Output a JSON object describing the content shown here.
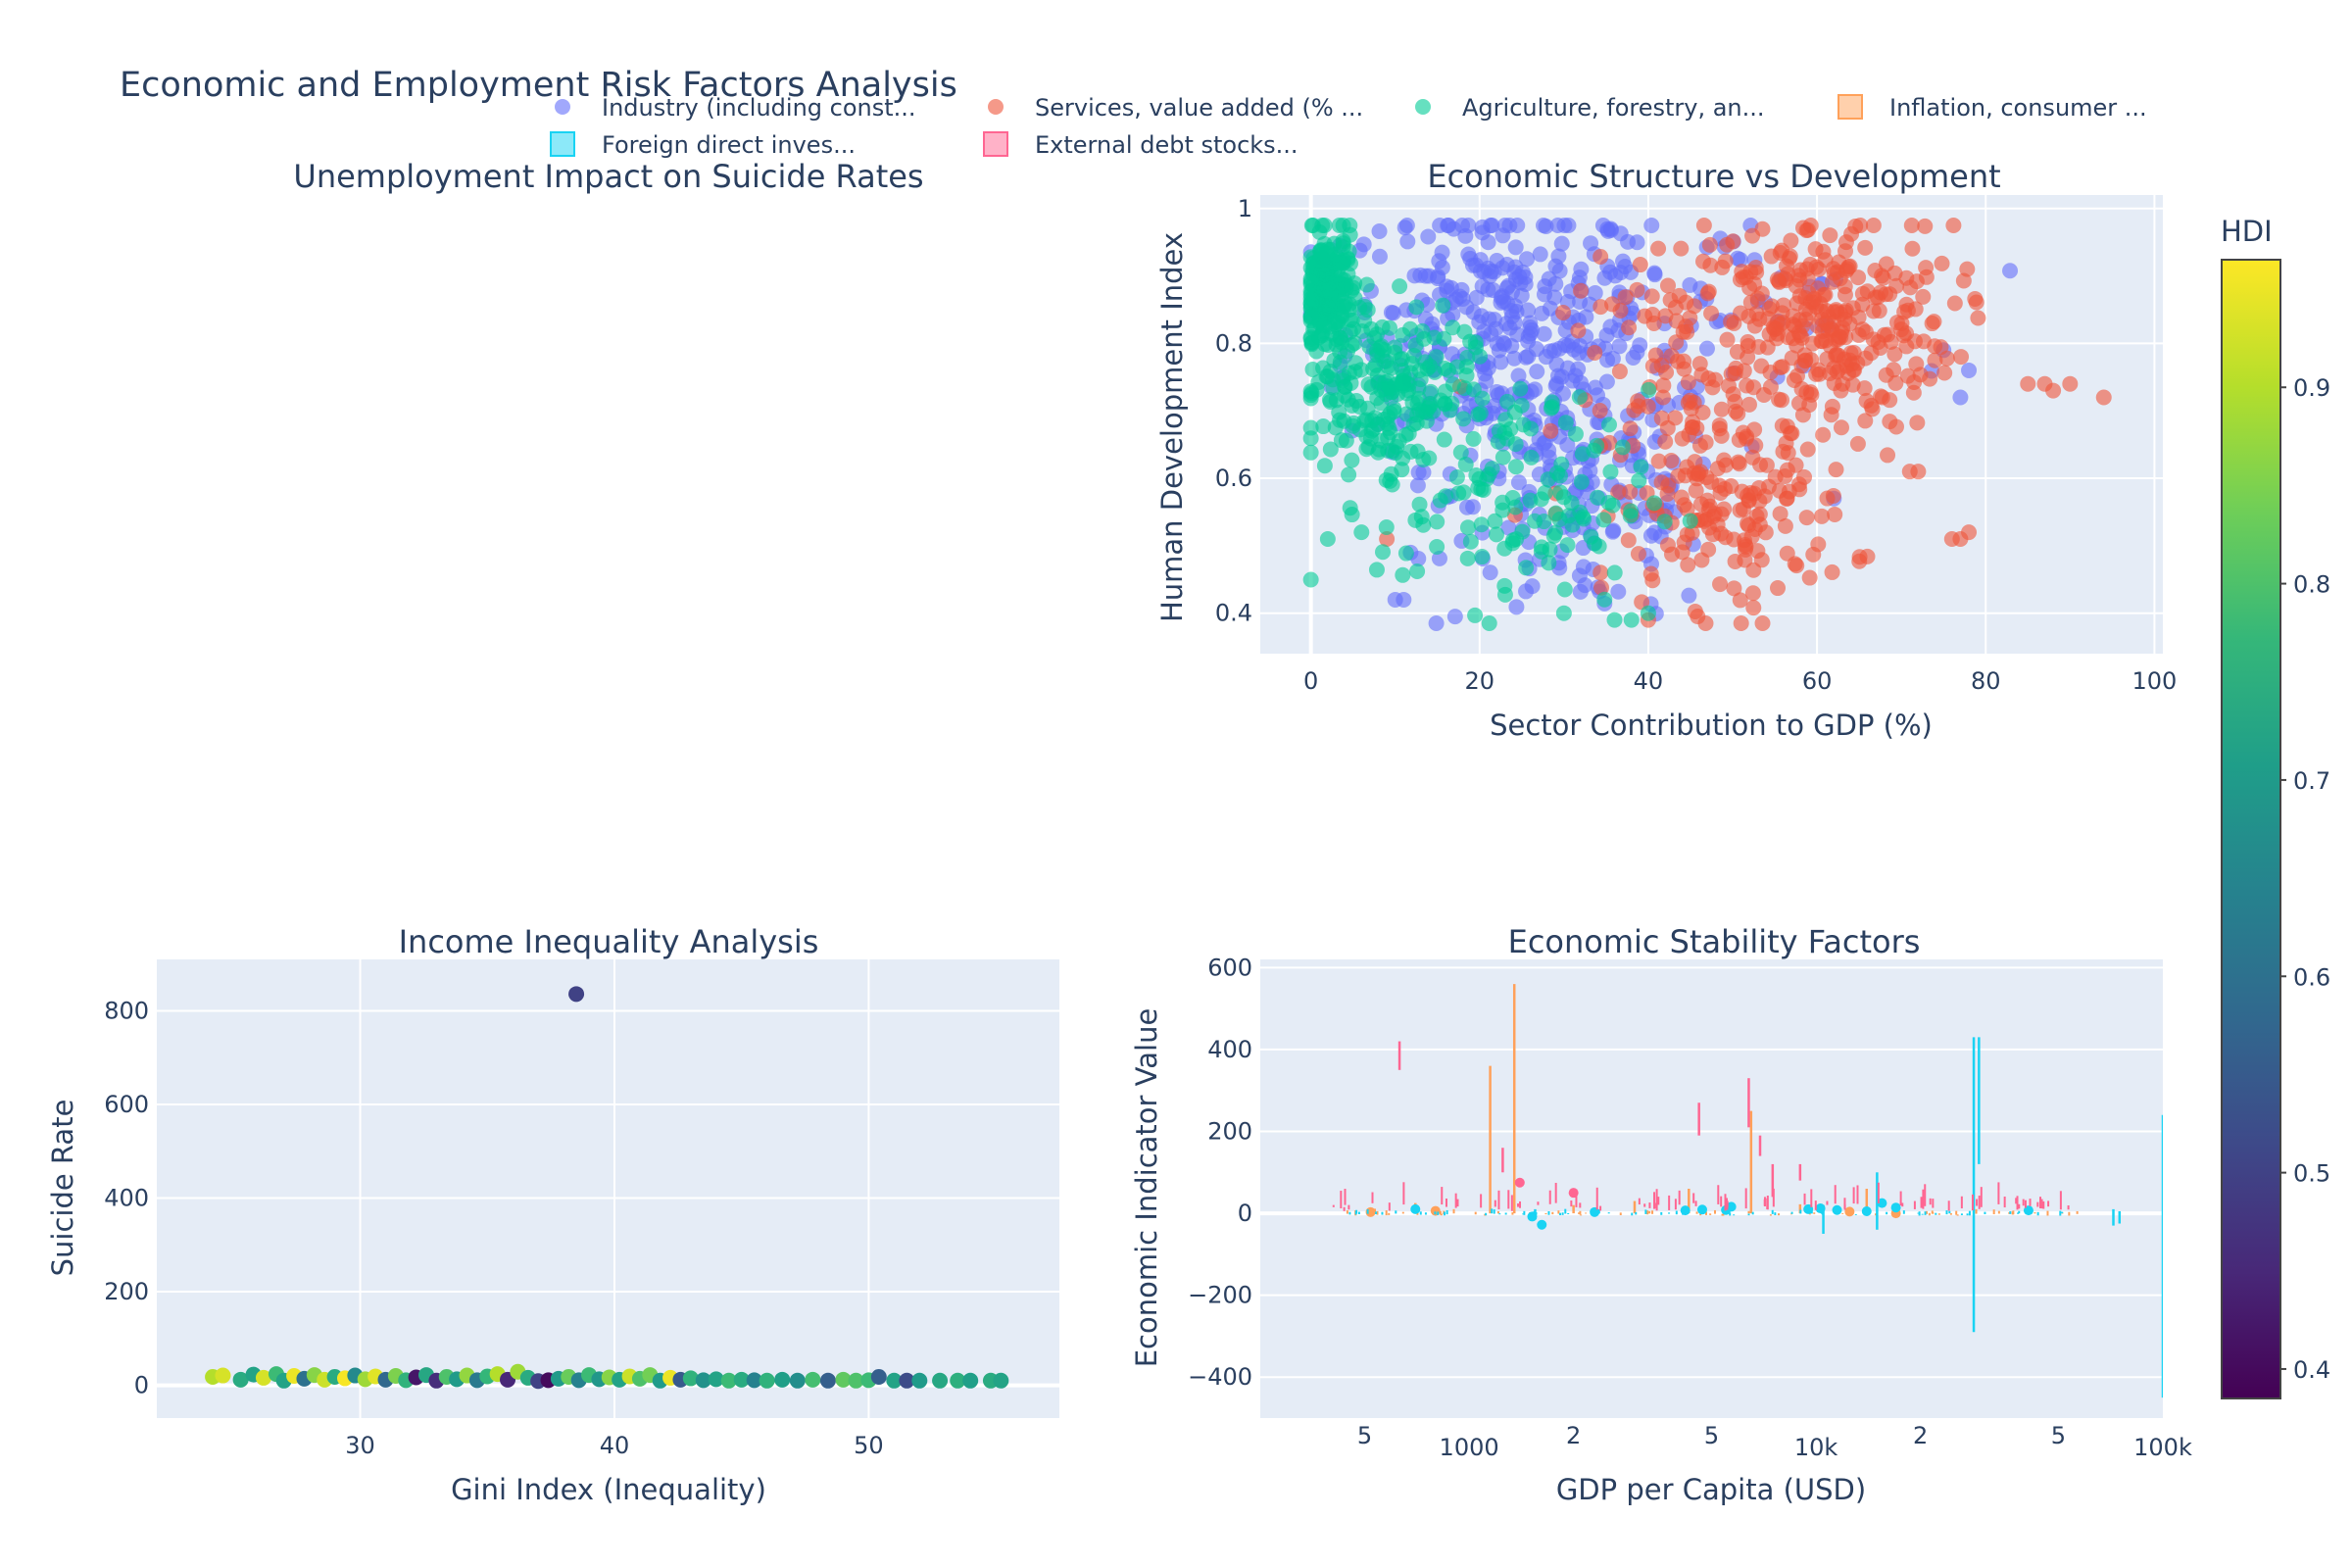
{
  "figure": {
    "title": "Economic and Employment Risk Factors Analysis"
  },
  "legend": {
    "items": [
      {
        "label": "Industry (including const...",
        "symbol": "circle",
        "color": "#636efa"
      },
      {
        "label": "Services, value added (% ...",
        "symbol": "circle",
        "color": "#ef553b"
      },
      {
        "label": "Agriculture, forestry, an...",
        "symbol": "circle",
        "color": "#00cc96"
      },
      {
        "label": "Inflation, consumer ...",
        "symbol": "square",
        "color": "#ffa15a"
      },
      {
        "label": "Foreign direct inves...",
        "symbol": "square",
        "color": "#19d3f3"
      },
      {
        "label": "External debt stocks...",
        "symbol": "square",
        "color": "#ff6692"
      }
    ]
  },
  "colorbar": {
    "title": "HDI",
    "ticks": [
      "0.9",
      "0.8",
      "0.7",
      "0.6",
      "0.5",
      "0.4"
    ],
    "range": [
      0.385,
      0.965
    ],
    "colorscale": "viridis"
  },
  "chart_data": [
    {
      "type": "scatter",
      "title": "Unemployment Impact on Suicide Rates",
      "xlabel": "",
      "ylabel": "",
      "series": []
    },
    {
      "type": "scatter",
      "title": "Economic Structure vs Development",
      "xlabel": "Sector Contribution to GDP (%)",
      "ylabel": "Human Development Index",
      "xlim": [
        -6,
        101
      ],
      "ylim": [
        0.34,
        1.02
      ],
      "xticks": [
        "0",
        "20",
        "40",
        "60",
        "80",
        "100"
      ],
      "yticks": [
        "0.4",
        "0.6",
        "0.8",
        "1"
      ],
      "series": [
        {
          "name": "Industry (including const...",
          "color": "#636efa",
          "clusters": [
            {
              "x": 22,
              "y": 0.82,
              "sx": 9,
              "sy": 0.1,
              "n": 320
            },
            {
              "x": 33,
              "y": 0.58,
              "sx": 8,
              "sy": 0.1,
              "n": 170
            },
            {
              "x": 45,
              "y": 0.86,
              "sx": 12,
              "sy": 0.06,
              "n": 60
            }
          ],
          "points": [
            [
              10,
              0.42
            ],
            [
              11,
              0.42
            ],
            [
              62,
              0.57
            ],
            [
              77,
              0.72
            ],
            [
              78,
              0.76
            ],
            [
              75,
              0.79
            ]
          ]
        },
        {
          "name": "Services, value added (% ...",
          "color": "#ef553b",
          "clusters": [
            {
              "x": 60,
              "y": 0.83,
              "sx": 8,
              "sy": 0.08,
              "n": 320
            },
            {
              "x": 50,
              "y": 0.55,
              "sx": 7,
              "sy": 0.07,
              "n": 150
            },
            {
              "x": 44,
              "y": 0.72,
              "sx": 7,
              "sy": 0.1,
              "n": 90
            }
          ],
          "points": [
            [
              85,
              0.74
            ],
            [
              87,
              0.74
            ],
            [
              88,
              0.73
            ],
            [
              90,
              0.74
            ],
            [
              94,
              0.72
            ],
            [
              76,
              0.51
            ],
            [
              77,
              0.51
            ],
            [
              78,
              0.52
            ],
            [
              72,
              0.61
            ],
            [
              71,
              0.61
            ],
            [
              40,
              0.39
            ],
            [
              9,
              0.51
            ]
          ]
        },
        {
          "name": "Agriculture, forestry, an...",
          "color": "#00cc96",
          "clusters": [
            {
              "x": 2,
              "y": 0.87,
              "sx": 1.6,
              "sy": 0.05,
              "n": 220
            },
            {
              "x": 9,
              "y": 0.73,
              "sx": 5,
              "sy": 0.06,
              "n": 200
            },
            {
              "x": 24,
              "y": 0.57,
              "sx": 8,
              "sy": 0.08,
              "n": 130
            }
          ],
          "points": [
            [
              36,
              0.39
            ],
            [
              38,
              0.39
            ],
            [
              40,
              0.4
            ],
            [
              30,
              0.4
            ],
            [
              6,
              0.52
            ],
            [
              2,
              0.51
            ]
          ]
        }
      ]
    },
    {
      "type": "scatter",
      "title": "Income Inequality Analysis",
      "xlabel": "Gini Index (Inequality)",
      "ylabel": "Suicide Rate",
      "xlim": [
        22,
        57.5
      ],
      "ylim": [
        -70,
        910
      ],
      "xticks": [
        "30",
        "40",
        "50"
      ],
      "yticks": [
        "0",
        "200",
        "400",
        "600",
        "800"
      ],
      "color_variable": "HDI",
      "points": [
        [
          38.5,
          836,
          0.5
        ],
        [
          24.2,
          18,
          0.9
        ],
        [
          24.6,
          21,
          0.93
        ],
        [
          25.3,
          12,
          0.74
        ],
        [
          25.8,
          23,
          0.72
        ],
        [
          26.2,
          16,
          0.93
        ],
        [
          26.7,
          24,
          0.78
        ],
        [
          27.0,
          10,
          0.72
        ],
        [
          27.4,
          20,
          0.95
        ],
        [
          27.8,
          14,
          0.6
        ],
        [
          28.2,
          22,
          0.86
        ],
        [
          28.6,
          12,
          0.92
        ],
        [
          29.0,
          18,
          0.74
        ],
        [
          29.4,
          15,
          0.96
        ],
        [
          29.8,
          21,
          0.66
        ],
        [
          30.2,
          13,
          0.88
        ],
        [
          30.6,
          19,
          0.94
        ],
        [
          31.0,
          12,
          0.58
        ],
        [
          31.4,
          20,
          0.85
        ],
        [
          31.8,
          11,
          0.76
        ],
        [
          32.2,
          17,
          0.42
        ],
        [
          32.6,
          22,
          0.73
        ],
        [
          33.0,
          10,
          0.46
        ],
        [
          33.4,
          18,
          0.8
        ],
        [
          33.8,
          13,
          0.7
        ],
        [
          34.2,
          21,
          0.87
        ],
        [
          34.6,
          11,
          0.62
        ],
        [
          35.0,
          19,
          0.77
        ],
        [
          35.4,
          24,
          0.9
        ],
        [
          35.8,
          12,
          0.45
        ],
        [
          36.2,
          29,
          0.88
        ],
        [
          36.6,
          16,
          0.74
        ],
        [
          37.0,
          9,
          0.5
        ],
        [
          37.4,
          11,
          0.4
        ],
        [
          37.8,
          14,
          0.7
        ],
        [
          38.2,
          18,
          0.83
        ],
        [
          38.6,
          11,
          0.64
        ],
        [
          39.0,
          22,
          0.78
        ],
        [
          39.4,
          13,
          0.69
        ],
        [
          39.8,
          17,
          0.86
        ],
        [
          40.2,
          12,
          0.72
        ],
        [
          40.6,
          19,
          0.92
        ],
        [
          41.0,
          14,
          0.8
        ],
        [
          41.4,
          22,
          0.84
        ],
        [
          41.8,
          10,
          0.7
        ],
        [
          42.2,
          16,
          0.95
        ],
        [
          42.6,
          12,
          0.55
        ],
        [
          43.0,
          15,
          0.76
        ],
        [
          43.5,
          11,
          0.68
        ],
        [
          44.0,
          13,
          0.72
        ],
        [
          44.5,
          10,
          0.78
        ],
        [
          45.0,
          12,
          0.74
        ],
        [
          45.5,
          11,
          0.64
        ],
        [
          46.0,
          10,
          0.76
        ],
        [
          46.6,
          12,
          0.71
        ],
        [
          47.2,
          10,
          0.67
        ],
        [
          47.8,
          12,
          0.79
        ],
        [
          48.4,
          10,
          0.56
        ],
        [
          49.0,
          12,
          0.82
        ],
        [
          49.5,
          10,
          0.8
        ],
        [
          50.0,
          11,
          0.78
        ],
        [
          50.4,
          18,
          0.56
        ],
        [
          51.0,
          10,
          0.72
        ],
        [
          51.5,
          10,
          0.52
        ],
        [
          52.0,
          10,
          0.7
        ],
        [
          52.8,
          10,
          0.73
        ],
        [
          53.5,
          10,
          0.75
        ],
        [
          54.0,
          10,
          0.71
        ],
        [
          54.8,
          10,
          0.74
        ],
        [
          55.2,
          10,
          0.72
        ]
      ]
    },
    {
      "type": "scatter",
      "title": "Economic Stability Factors",
      "xlabel": "GDP per Capita (USD)",
      "ylabel": "Economic Indicator Value",
      "xscale": "log",
      "xlim": [
        250,
        100000
      ],
      "ylim": [
        -500,
        620
      ],
      "xticks": [
        {
          "v": 500,
          "label": "5"
        },
        {
          "v": 1000,
          "label": "1000"
        },
        {
          "v": 2000,
          "label": "2"
        },
        {
          "v": 5000,
          "label": "5"
        },
        {
          "v": 10000,
          "label": "10k"
        },
        {
          "v": 20000,
          "label": "2"
        },
        {
          "v": 50000,
          "label": "5"
        },
        {
          "v": 100000,
          "label": "100k"
        }
      ],
      "yticks": [
        "600",
        "400",
        "200",
        "0",
        "−200",
        "−400"
      ],
      "series": [
        {
          "name": "Inflation, consumer ...",
          "color": "#ffa15a",
          "bars": [
            [
              1150,
              0,
              360
            ],
            [
              1350,
              0,
              560
            ],
            [
              4300,
              0,
              60
            ],
            [
              6500,
              0,
              250
            ],
            [
              14000,
              0,
              60
            ],
            [
              3000,
              0,
              30
            ],
            [
              700,
              0,
              25
            ],
            [
              2000,
              0,
              20
            ],
            [
              9000,
              0,
              22
            ]
          ],
          "points": [
            [
              520,
              3
            ],
            [
              800,
              6
            ],
            [
              12500,
              4
            ],
            [
              17000,
              0
            ]
          ]
        },
        {
          "name": "Foreign direct inves...",
          "color": "#19d3f3",
          "bars": [
            [
              28500,
              -290,
              430
            ],
            [
              29500,
              120,
              430
            ],
            [
              100000,
              -450,
              240
            ],
            [
              10500,
              -50,
              20
            ],
            [
              1550,
              -15,
              10
            ],
            [
              15000,
              -40,
              100
            ],
            [
              72000,
              -30,
              10
            ],
            [
              75000,
              -25,
              5
            ]
          ],
          "points": [
            [
              700,
              10
            ],
            [
              1520,
              -8
            ],
            [
              1620,
              -28
            ],
            [
              2300,
              3
            ],
            [
              4200,
              7
            ],
            [
              4700,
              9
            ],
            [
              5500,
              8
            ],
            [
              5700,
              16
            ],
            [
              9500,
              10
            ],
            [
              10300,
              12
            ],
            [
              11500,
              8
            ],
            [
              14000,
              5
            ],
            [
              15500,
              25
            ],
            [
              17000,
              14
            ],
            [
              41000,
              7
            ]
          ]
        },
        {
          "name": "External debt stocks...",
          "color": "#ff6692",
          "bars": [
            [
              630,
              350,
              420
            ],
            [
              4600,
              190,
              270
            ],
            [
              6400,
              210,
              330
            ],
            [
              1250,
              100,
              160
            ],
            [
              6900,
              140,
              190
            ],
            [
              9000,
              80,
              120
            ],
            [
              7500,
              40,
              120
            ]
          ],
          "points": [
            [
              1400,
              75
            ],
            [
              2000,
              50
            ]
          ]
        }
      ]
    }
  ]
}
